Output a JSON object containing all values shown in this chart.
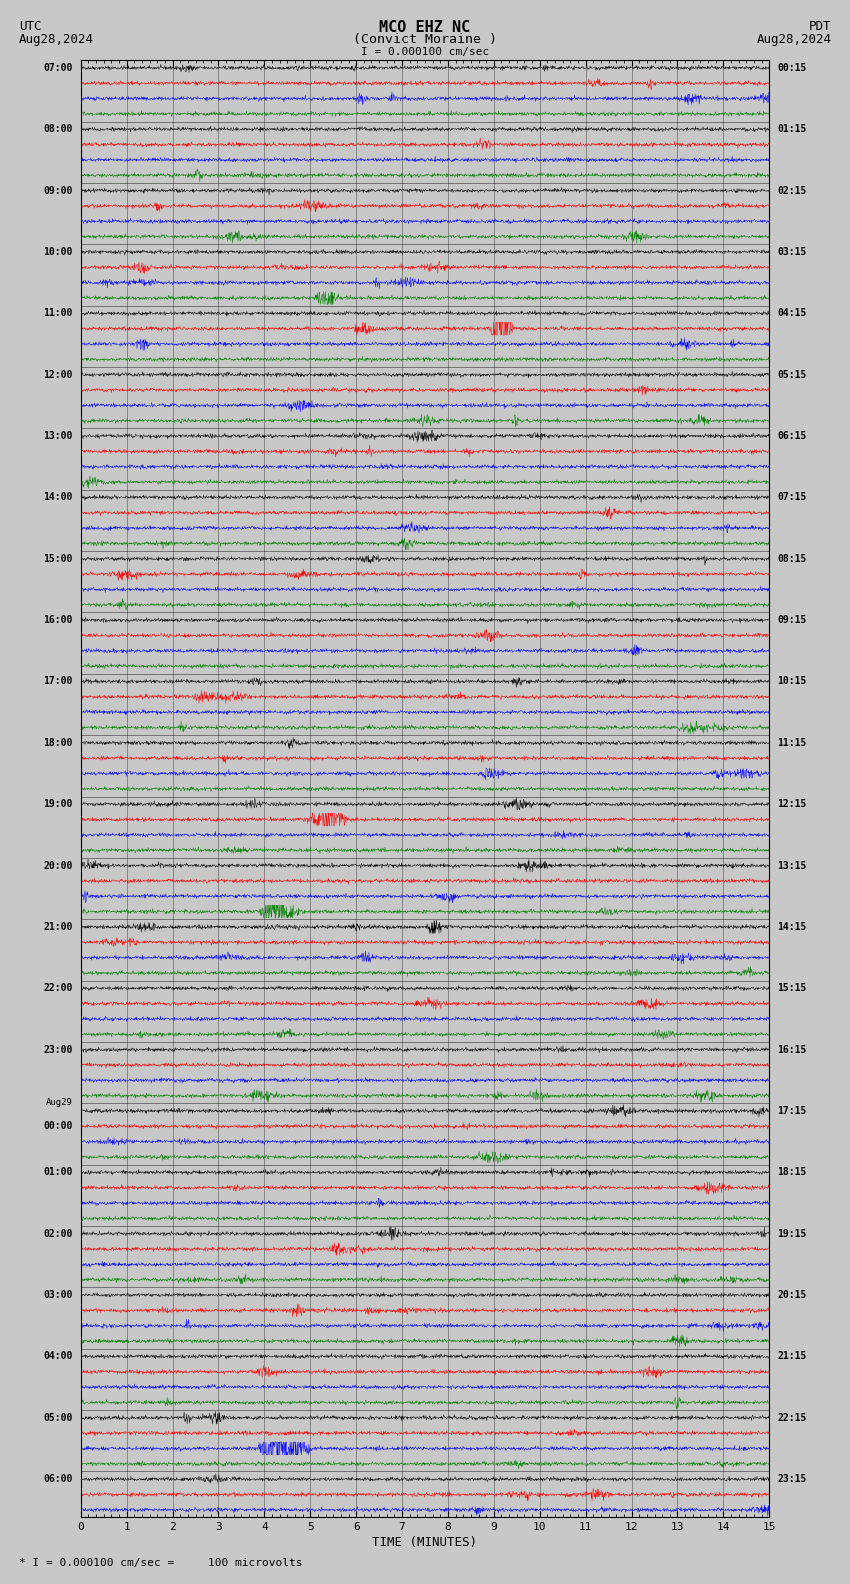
{
  "title_line1": "MCO EHZ NC",
  "title_line2": "(Convict Moraine )",
  "scale_label": "I = 0.000100 cm/sec",
  "utc_label": "UTC",
  "pdt_label": "PDT",
  "date_left": "Aug28,2024",
  "date_right": "Aug28,2024",
  "xlabel": "TIME (MINUTES)",
  "footnote": "* I = 0.000100 cm/sec =     100 microvolts",
  "bg_color": "#c8c8c8",
  "trace_colors_cycle": [
    "black",
    "red",
    "blue",
    "green"
  ],
  "xlim": [
    0,
    15
  ],
  "xticks": [
    0,
    1,
    2,
    3,
    4,
    5,
    6,
    7,
    8,
    9,
    10,
    11,
    12,
    13,
    14,
    15
  ],
  "utc_times_left": [
    "07:00",
    "",
    "",
    "",
    "08:00",
    "",
    "",
    "",
    "09:00",
    "",
    "",
    "",
    "10:00",
    "",
    "",
    "",
    "11:00",
    "",
    "",
    "",
    "12:00",
    "",
    "",
    "",
    "13:00",
    "",
    "",
    "",
    "14:00",
    "",
    "",
    "",
    "15:00",
    "",
    "",
    "",
    "16:00",
    "",
    "",
    "",
    "17:00",
    "",
    "",
    "",
    "18:00",
    "",
    "",
    "",
    "19:00",
    "",
    "",
    "",
    "20:00",
    "",
    "",
    "",
    "21:00",
    "",
    "",
    "",
    "22:00",
    "",
    "",
    "",
    "23:00",
    "",
    "",
    "",
    "Aug29",
    "00:00",
    "",
    "",
    "01:00",
    "",
    "",
    "",
    "02:00",
    "",
    "",
    "",
    "03:00",
    "",
    "",
    "",
    "04:00",
    "",
    "",
    "",
    "05:00",
    "",
    "",
    "",
    "06:00",
    "",
    ""
  ],
  "pdt_times_right": [
    "00:15",
    "",
    "",
    "",
    "01:15",
    "",
    "",
    "",
    "02:15",
    "",
    "",
    "",
    "03:15",
    "",
    "",
    "",
    "04:15",
    "",
    "",
    "",
    "05:15",
    "",
    "",
    "",
    "06:15",
    "",
    "",
    "",
    "07:15",
    "",
    "",
    "",
    "08:15",
    "",
    "",
    "",
    "09:15",
    "",
    "",
    "",
    "10:15",
    "",
    "",
    "",
    "11:15",
    "",
    "",
    "",
    "12:15",
    "",
    "",
    "",
    "13:15",
    "",
    "",
    "",
    "14:15",
    "",
    "",
    "",
    "15:15",
    "",
    "",
    "",
    "16:15",
    "",
    "",
    "",
    "17:15",
    "",
    "",
    "",
    "18:15",
    "",
    "",
    "",
    "19:15",
    "",
    "",
    "",
    "20:15",
    "",
    "",
    "",
    "21:15",
    "",
    "",
    "",
    "22:15",
    "",
    "",
    "",
    "23:15",
    "",
    ""
  ],
  "n_traces": 95,
  "seed": 42
}
